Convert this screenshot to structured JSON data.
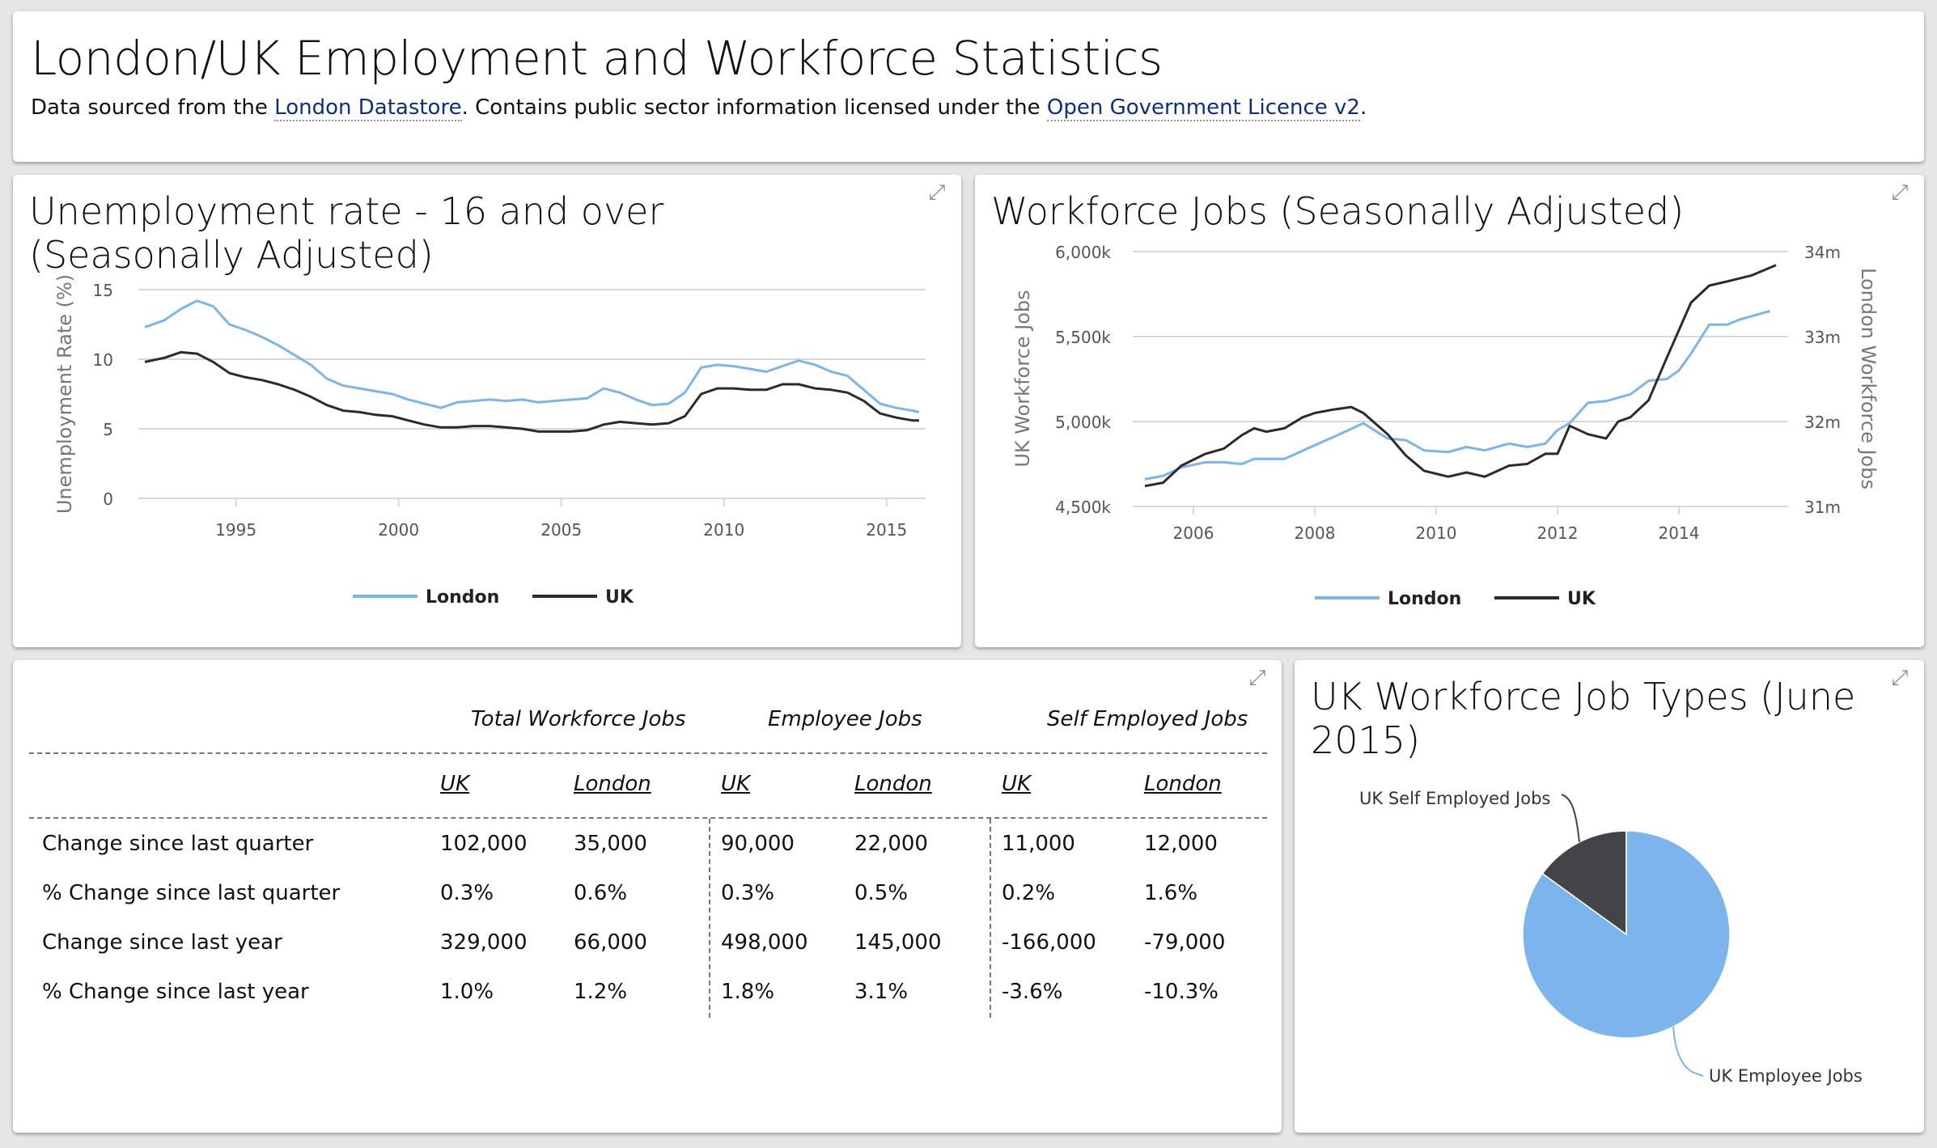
{
  "header": {
    "title": "London/UK Employment and Workforce Statistics",
    "sub_pre": "Data sourced from the ",
    "link1": "London Datastore",
    "sub_mid": ". Contains public sector information licensed under the ",
    "link2": "Open Government Licence v2",
    "sub_post": "."
  },
  "expand_icon": "expand-icon",
  "colors": {
    "london": "#7cb5ec",
    "uk": "#2b2b2f",
    "grid": "#d8d8d8",
    "axis_text": "#555555"
  },
  "unemployment": {
    "title": "Unemployment rate - 16 and over (Seasonally Adjusted)",
    "chart_data": {
      "type": "line",
      "title": "Unemployment rate - 16 and over (Seasonally Adjusted)",
      "ylabel": "Unemployment Rate (%)",
      "ylim": [
        0,
        15
      ],
      "yticks": [
        "0",
        "5",
        "10",
        "15"
      ],
      "xlim": [
        1992,
        2016.2
      ],
      "xticks": [
        "1995",
        "2000",
        "2005",
        "2010",
        "2015"
      ],
      "grid": true,
      "legend": "bottom-center",
      "series": [
        {
          "name": "London",
          "x": [
            1992.2,
            1992.8,
            1993.3,
            1993.8,
            1994.3,
            1994.8,
            1995.3,
            1995.8,
            1996.3,
            1996.8,
            1997.3,
            1997.8,
            1998.3,
            1998.8,
            1999.3,
            1999.8,
            2000.3,
            2000.8,
            2001.3,
            2001.8,
            2002.3,
            2002.8,
            2003.3,
            2003.8,
            2004.3,
            2004.8,
            2005.3,
            2005.8,
            2006.3,
            2006.8,
            2007.3,
            2007.8,
            2008.3,
            2008.8,
            2009.3,
            2009.8,
            2010.3,
            2010.8,
            2011.3,
            2011.8,
            2012.3,
            2012.8,
            2013.3,
            2013.8,
            2014.3,
            2014.8,
            2015.3,
            2015.8,
            2016.0
          ],
          "values": [
            12.3,
            12.8,
            13.6,
            14.2,
            13.8,
            12.5,
            12.1,
            11.6,
            11.0,
            10.3,
            9.6,
            8.6,
            8.1,
            7.9,
            7.7,
            7.5,
            7.1,
            6.8,
            6.5,
            6.9,
            7.0,
            7.1,
            7.0,
            7.1,
            6.9,
            7.0,
            7.1,
            7.2,
            7.9,
            7.6,
            7.1,
            6.7,
            6.8,
            7.6,
            9.4,
            9.6,
            9.5,
            9.3,
            9.1,
            9.5,
            9.9,
            9.6,
            9.1,
            8.8,
            7.8,
            6.8,
            6.5,
            6.3,
            6.2
          ]
        },
        {
          "name": "UK",
          "x": [
            1992.2,
            1992.8,
            1993.3,
            1993.8,
            1994.3,
            1994.8,
            1995.3,
            1995.8,
            1996.3,
            1996.8,
            1997.3,
            1997.8,
            1998.3,
            1998.8,
            1999.3,
            1999.8,
            2000.3,
            2000.8,
            2001.3,
            2001.8,
            2002.3,
            2002.8,
            2003.3,
            2003.8,
            2004.3,
            2004.8,
            2005.3,
            2005.8,
            2006.3,
            2006.8,
            2007.3,
            2007.8,
            2008.3,
            2008.8,
            2009.3,
            2009.8,
            2010.3,
            2010.8,
            2011.3,
            2011.8,
            2012.3,
            2012.8,
            2013.3,
            2013.8,
            2014.3,
            2014.8,
            2015.3,
            2015.8,
            2016.0
          ],
          "values": [
            9.8,
            10.1,
            10.5,
            10.4,
            9.8,
            9.0,
            8.7,
            8.5,
            8.2,
            7.8,
            7.3,
            6.7,
            6.3,
            6.2,
            6.0,
            5.9,
            5.6,
            5.3,
            5.1,
            5.1,
            5.2,
            5.2,
            5.1,
            5.0,
            4.8,
            4.8,
            4.8,
            4.9,
            5.3,
            5.5,
            5.4,
            5.3,
            5.4,
            5.9,
            7.5,
            7.9,
            7.9,
            7.8,
            7.8,
            8.2,
            8.2,
            7.9,
            7.8,
            7.6,
            7.0,
            6.1,
            5.8,
            5.6,
            5.6
          ]
        }
      ]
    }
  },
  "jobs": {
    "title": "Workforce Jobs (Seasonally Adjusted)",
    "chart_data": {
      "type": "line",
      "title": "Workforce Jobs (Seasonally Adjusted)",
      "ylabel": "UK Workforce Jobs",
      "y2label": "London Workforce Jobs",
      "ylim": [
        4500,
        6000
      ],
      "yticks": [
        "4,500k",
        "5,000k",
        "5,500k",
        "6,000k"
      ],
      "y2lim": [
        31,
        34
      ],
      "y2ticks": [
        "31m",
        "32m",
        "33m",
        "34m"
      ],
      "xlim": [
        2005,
        2015.8
      ],
      "xticks": [
        "2006",
        "2008",
        "2010",
        "2012",
        "2014"
      ],
      "grid": true,
      "legend": "bottom-center",
      "series": [
        {
          "name": "London",
          "axis": "left",
          "x": [
            2005.2,
            2005.5,
            2005.8,
            2006.2,
            2006.5,
            2006.8,
            2007.0,
            2007.5,
            2008.0,
            2008.5,
            2008.8,
            2009.2,
            2009.5,
            2009.8,
            2010.2,
            2010.5,
            2010.8,
            2011.2,
            2011.5,
            2011.8,
            2012.0,
            2012.2,
            2012.5,
            2012.8,
            2013.0,
            2013.2,
            2013.5,
            2013.8,
            2014.0,
            2014.2,
            2014.5,
            2014.8,
            2015.0,
            2015.5
          ],
          "values": [
            4660,
            4680,
            4730,
            4760,
            4760,
            4750,
            4780,
            4780,
            4860,
            4940,
            4990,
            4900,
            4890,
            4830,
            4820,
            4850,
            4830,
            4870,
            4850,
            4870,
            4950,
            4990,
            5110,
            5120,
            5140,
            5160,
            5240,
            5250,
            5300,
            5400,
            5570,
            5570,
            5600,
            5650
          ]
        },
        {
          "name": "UK",
          "axis": "right",
          "x": [
            2005.2,
            2005.5,
            2005.8,
            2006.2,
            2006.5,
            2006.8,
            2007.0,
            2007.2,
            2007.5,
            2007.8,
            2008.0,
            2008.3,
            2008.6,
            2008.8,
            2009.2,
            2009.5,
            2009.8,
            2010.2,
            2010.5,
            2010.8,
            2011.2,
            2011.5,
            2011.8,
            2012.0,
            2012.2,
            2012.5,
            2012.8,
            2013.0,
            2013.2,
            2013.5,
            2013.8,
            2014.2,
            2014.5,
            2014.8,
            2015.2,
            2015.6
          ],
          "values": [
            31.24,
            31.28,
            31.48,
            31.62,
            31.68,
            31.84,
            31.92,
            31.88,
            31.92,
            32.05,
            32.1,
            32.14,
            32.17,
            32.1,
            31.85,
            31.6,
            31.42,
            31.35,
            31.4,
            31.35,
            31.48,
            31.5,
            31.62,
            31.62,
            31.95,
            31.85,
            31.8,
            32.0,
            32.05,
            32.25,
            32.75,
            33.4,
            33.6,
            33.65,
            33.72,
            33.84
          ]
        }
      ]
    }
  },
  "table": {
    "groups": [
      "Total Workforce Jobs",
      "Employee Jobs",
      "Self Employed Jobs"
    ],
    "subheaders": [
      "UK",
      "London",
      "UK",
      "London",
      "UK",
      "London"
    ],
    "rows": [
      {
        "label": "Change since last quarter",
        "values": [
          "102,000",
          "35,000",
          "90,000",
          "22,000",
          "11,000",
          "12,000"
        ]
      },
      {
        "label": "% Change since last quarter",
        "values": [
          "0.3%",
          "0.6%",
          "0.3%",
          "0.5%",
          "0.2%",
          "1.6%"
        ]
      },
      {
        "label": "Change since last year",
        "values": [
          "329,000",
          "66,000",
          "498,000",
          "145,000",
          "-166,000",
          "-79,000"
        ]
      },
      {
        "label": "% Change since last year",
        "values": [
          "1.0%",
          "1.2%",
          "1.8%",
          "3.1%",
          "-3.6%",
          "-10.3%"
        ]
      }
    ]
  },
  "pie": {
    "title": "UK Workforce Job Types (June 2015)",
    "chart_data": {
      "type": "pie",
      "title": "UK Workforce Job Types (June 2015)",
      "slices": [
        {
          "name": "UK Employee Jobs",
          "value": 85,
          "color": "#7cb5ec"
        },
        {
          "name": "UK Self Employed Jobs",
          "value": 15,
          "color": "#434348"
        }
      ]
    }
  }
}
